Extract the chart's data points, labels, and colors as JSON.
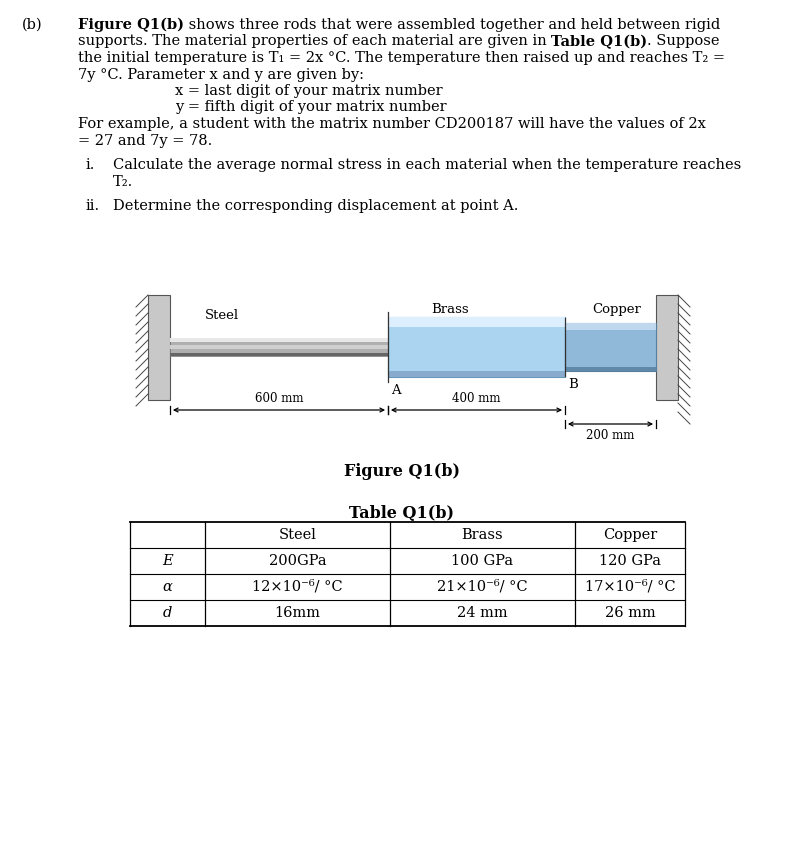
{
  "bg_color": "#ffffff",
  "font_size": 10.5,
  "table_headers": [
    "",
    "Steel",
    "Brass",
    "Copper"
  ],
  "table_rows": [
    [
      "E",
      "200GPa",
      "100 GPa",
      "120 GPa"
    ],
    [
      "α",
      "12×10⁻⁶/ °C",
      "21×10⁻⁶/ °C",
      "17×10⁻⁶/ °C"
    ],
    [
      "d",
      "16mm",
      "24 mm",
      "26 mm"
    ]
  ],
  "label_b": "(b)",
  "text_lines": [
    {
      "parts": [
        {
          "t": "Figure Q1(b)",
          "bold": true
        },
        {
          "t": " shows three rods that were assembled together and held between rigid",
          "bold": false
        }
      ]
    },
    {
      "parts": [
        {
          "t": "supports. The material properties of each material are given in ",
          "bold": false
        },
        {
          "t": "Table Q1(b)",
          "bold": true
        },
        {
          "t": ". Suppose",
          "bold": false
        }
      ]
    },
    {
      "parts": [
        {
          "t": "the initial temperature is T₁ = 2x °C. The temperature then raised up and reaches T₂ =",
          "bold": false
        }
      ]
    },
    {
      "parts": [
        {
          "t": "7y °C. Parameter x and y are given by:",
          "bold": false
        }
      ]
    },
    {
      "parts": [
        {
          "t": "x = last digit of your matrix number",
          "bold": false
        }
      ],
      "indent": true
    },
    {
      "parts": [
        {
          "t": "y = fifth digit of your matrix number",
          "bold": false
        }
      ],
      "indent": true
    },
    {
      "parts": [
        {
          "t": "For example, a student with the matrix number CD200187 will have the values of 2x",
          "bold": false
        }
      ]
    },
    {
      "parts": [
        {
          "t": "= 27 and 7y = 78.",
          "bold": false
        }
      ]
    }
  ],
  "q_i": "Calculate the average normal stress in each material when the temperature reaches",
  "q_i_2": "T₂.",
  "q_ii": "Determine the corresponding displacement at point A.",
  "fig_caption": "Figure Q1(b)",
  "tbl_caption": "Table Q1(b)"
}
